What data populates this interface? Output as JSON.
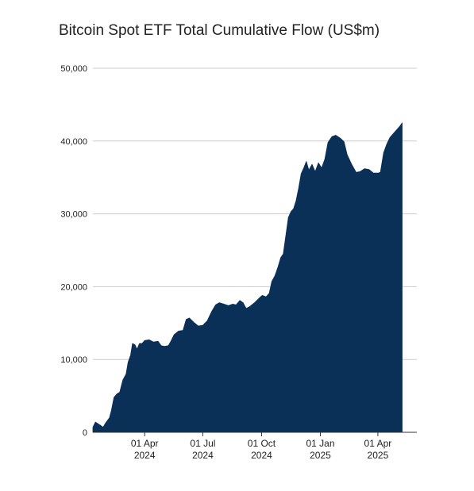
{
  "chart_data": {
    "type": "area",
    "title": "Bitcoin Spot ETF Total Cumulative Flow (US$m)",
    "xlabel": "",
    "ylabel": "",
    "ylim": [
      0,
      50000
    ],
    "yticks": [
      0,
      10000,
      20000,
      30000,
      40000,
      50000
    ],
    "ytick_labels": [
      "0",
      "10,000",
      "20,000",
      "30,000",
      "40,000",
      "50,000"
    ],
    "xticks": [
      {
        "date": "2024-04-01",
        "line1": "01 Apr",
        "line2": "2024"
      },
      {
        "date": "2024-07-01",
        "line1": "01 Jul",
        "line2": "2024"
      },
      {
        "date": "2024-10-01",
        "line1": "01 Oct",
        "line2": "2024"
      },
      {
        "date": "2025-01-01",
        "line1": "01 Jan",
        "line2": "2025"
      },
      {
        "date": "2025-04-01",
        "line1": "01 Apr",
        "line2": "2025"
      }
    ],
    "xlim": [
      "2024-01-11",
      "2025-06-01"
    ],
    "grid": "horizontal",
    "color": "#0a3057",
    "points": [
      [
        "2024-01-11",
        700
      ],
      [
        "2024-01-15",
        1400
      ],
      [
        "2024-01-22",
        1000
      ],
      [
        "2024-01-27",
        700
      ],
      [
        "2024-01-31",
        1300
      ],
      [
        "2024-02-06",
        2000
      ],
      [
        "2024-02-09",
        3000
      ],
      [
        "2024-02-13",
        4800
      ],
      [
        "2024-02-18",
        5300
      ],
      [
        "2024-02-22",
        5500
      ],
      [
        "2024-02-27",
        7200
      ],
      [
        "2024-03-03",
        8000
      ],
      [
        "2024-03-06",
        9600
      ],
      [
        "2024-03-10",
        10600
      ],
      [
        "2024-03-13",
        12200
      ],
      [
        "2024-03-17",
        12000
      ],
      [
        "2024-03-20",
        11400
      ],
      [
        "2024-03-24",
        12200
      ],
      [
        "2024-03-28",
        12200
      ],
      [
        "2024-04-01",
        12600
      ],
      [
        "2024-04-08",
        12700
      ],
      [
        "2024-04-15",
        12400
      ],
      [
        "2024-04-22",
        12500
      ],
      [
        "2024-04-27",
        11900
      ],
      [
        "2024-05-02",
        11800
      ],
      [
        "2024-05-08",
        11900
      ],
      [
        "2024-05-12",
        12500
      ],
      [
        "2024-05-17",
        13400
      ],
      [
        "2024-05-24",
        13900
      ],
      [
        "2024-05-31",
        14000
      ],
      [
        "2024-06-05",
        15500
      ],
      [
        "2024-06-10",
        15700
      ],
      [
        "2024-06-17",
        15100
      ],
      [
        "2024-06-24",
        14600
      ],
      [
        "2024-07-01",
        14700
      ],
      [
        "2024-07-08",
        15300
      ],
      [
        "2024-07-15",
        16600
      ],
      [
        "2024-07-21",
        17500
      ],
      [
        "2024-07-27",
        17800
      ],
      [
        "2024-08-03",
        17600
      ],
      [
        "2024-08-10",
        17400
      ],
      [
        "2024-08-17",
        17600
      ],
      [
        "2024-08-22",
        17500
      ],
      [
        "2024-08-28",
        18100
      ],
      [
        "2024-09-02",
        17800
      ],
      [
        "2024-09-07",
        17000
      ],
      [
        "2024-09-13",
        17300
      ],
      [
        "2024-09-20",
        17800
      ],
      [
        "2024-09-27",
        18400
      ],
      [
        "2024-10-02",
        18800
      ],
      [
        "2024-10-08",
        18600
      ],
      [
        "2024-10-13",
        19100
      ],
      [
        "2024-10-17",
        20700
      ],
      [
        "2024-10-22",
        21500
      ],
      [
        "2024-10-27",
        22800
      ],
      [
        "2024-10-31",
        24000
      ],
      [
        "2024-11-04",
        24500
      ],
      [
        "2024-11-08",
        27000
      ],
      [
        "2024-11-12",
        29500
      ],
      [
        "2024-11-16",
        30300
      ],
      [
        "2024-11-20",
        30700
      ],
      [
        "2024-11-24",
        31800
      ],
      [
        "2024-11-28",
        33500
      ],
      [
        "2024-12-02",
        35500
      ],
      [
        "2024-12-06",
        36300
      ],
      [
        "2024-12-10",
        37200
      ],
      [
        "2024-12-14",
        36000
      ],
      [
        "2024-12-19",
        36800
      ],
      [
        "2024-12-24",
        35800
      ],
      [
        "2024-12-29",
        37000
      ],
      [
        "2025-01-03",
        36300
      ],
      [
        "2025-01-08",
        37500
      ],
      [
        "2025-01-13",
        39800
      ],
      [
        "2025-01-19",
        40600
      ],
      [
        "2025-01-25",
        40800
      ],
      [
        "2025-02-01",
        40400
      ],
      [
        "2025-02-07",
        39900
      ],
      [
        "2025-02-12",
        38100
      ],
      [
        "2025-02-19",
        36800
      ],
      [
        "2025-02-26",
        35700
      ],
      [
        "2025-03-04",
        35800
      ],
      [
        "2025-03-11",
        36200
      ],
      [
        "2025-03-18",
        36100
      ],
      [
        "2025-03-25",
        35600
      ],
      [
        "2025-04-01",
        35600
      ],
      [
        "2025-04-05",
        35700
      ],
      [
        "2025-04-10",
        38400
      ],
      [
        "2025-04-15",
        39600
      ],
      [
        "2025-04-20",
        40500
      ],
      [
        "2025-04-25",
        41000
      ],
      [
        "2025-05-01",
        41600
      ],
      [
        "2025-05-06",
        42100
      ],
      [
        "2025-05-09",
        42500
      ]
    ]
  }
}
